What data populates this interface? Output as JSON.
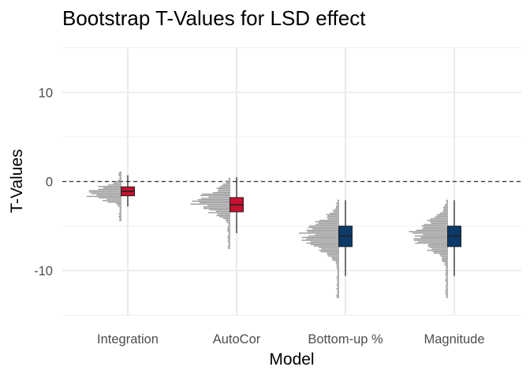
{
  "chart_data": {
    "type": "box",
    "title": "Bootstrap T-Values for LSD effect",
    "xlabel": "Model",
    "ylabel": "T-Values",
    "ylim": [
      -15.2,
      15.2
    ],
    "yticks": [
      -10,
      0,
      10
    ],
    "reference_line": {
      "y": 0,
      "style": "dashed"
    },
    "grid": true,
    "categories": [
      "Integration",
      "AutoCor",
      "Bottom-up %",
      "Magnitude"
    ],
    "colors": {
      "Integration": "#c8102e",
      "AutoCor": "#c8102e",
      "Bottom-up %": "#0b3a6b",
      "Magnitude": "#0b3a6b",
      "distribution": "#9a9a9a",
      "gridline": "#ebebeb"
    },
    "boxes": [
      {
        "category": "Integration",
        "min": -2.8,
        "q1": -1.6,
        "median": -1.1,
        "q3": -0.6,
        "max": 0.7,
        "dist_min": -4.4,
        "dist_max": 1.1,
        "dist_mode": -1.3,
        "dist_sd": 0.7
      },
      {
        "category": "AutoCor",
        "min": -5.8,
        "q1": -3.4,
        "median": -2.6,
        "q3": -1.8,
        "max": 0.5,
        "dist_min": -7.5,
        "dist_max": 0.5,
        "dist_mode": -2.3,
        "dist_sd": 1.1
      },
      {
        "category": "Bottom-up %",
        "min": -10.6,
        "q1": -7.3,
        "median": -6.1,
        "q3": -5.0,
        "max": -2.1,
        "dist_min": -13.0,
        "dist_max": -2.0,
        "dist_mode": -6.0,
        "dist_sd": 1.5
      },
      {
        "category": "Magnitude",
        "min": -10.6,
        "q1": -7.3,
        "median": -6.1,
        "q3": -5.0,
        "max": -2.1,
        "dist_min": -13.0,
        "dist_max": -2.0,
        "dist_mode": -6.0,
        "dist_sd": 1.5
      }
    ]
  }
}
